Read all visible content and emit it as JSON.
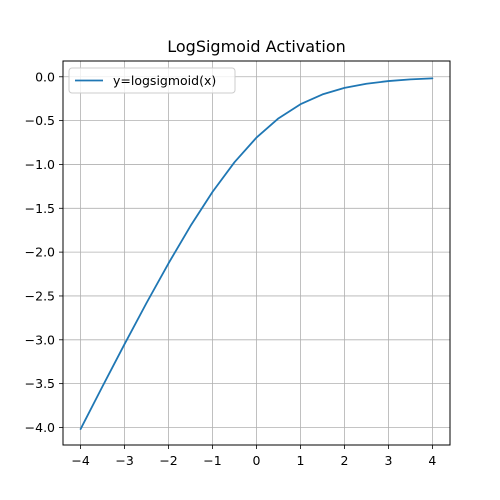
{
  "chart_data": {
    "type": "line",
    "title": "LogSigmoid Activation",
    "xlabel": "",
    "ylabel": "",
    "xlim": [
      -4.4,
      4.4
    ],
    "ylim": [
      -4.2,
      0.18
    ],
    "x_ticks": [
      -4,
      -3,
      -2,
      -1,
      0,
      1,
      2,
      3,
      4
    ],
    "x_tick_labels": [
      "−4",
      "−3",
      "−2",
      "−1",
      "0",
      "1",
      "2",
      "3",
      "4"
    ],
    "y_ticks": [
      0.0,
      -0.5,
      -1.0,
      -1.5,
      -2.0,
      -2.5,
      -3.0,
      -3.5,
      -4.0
    ],
    "y_tick_labels": [
      "0.0",
      "−0.5",
      "−1.0",
      "−1.5",
      "−2.0",
      "−2.5",
      "−3.0",
      "−3.5",
      "−4.0"
    ],
    "grid": true,
    "legend_position": "top-left",
    "series": [
      {
        "name": "y=logsigmoid(x)",
        "color": "#1f77b4",
        "x": [
          -4.0,
          -3.5,
          -3.0,
          -2.5,
          -2.0,
          -1.5,
          -1.0,
          -0.5,
          0.0,
          0.5,
          1.0,
          1.5,
          2.0,
          2.5,
          3.0,
          3.5,
          4.0
        ],
        "y": [
          -4.018,
          -3.53,
          -3.049,
          -2.579,
          -2.127,
          -1.701,
          -1.313,
          -0.974,
          -0.693,
          -0.474,
          -0.313,
          -0.201,
          -0.127,
          -0.079,
          -0.049,
          -0.03,
          -0.018
        ]
      }
    ]
  }
}
